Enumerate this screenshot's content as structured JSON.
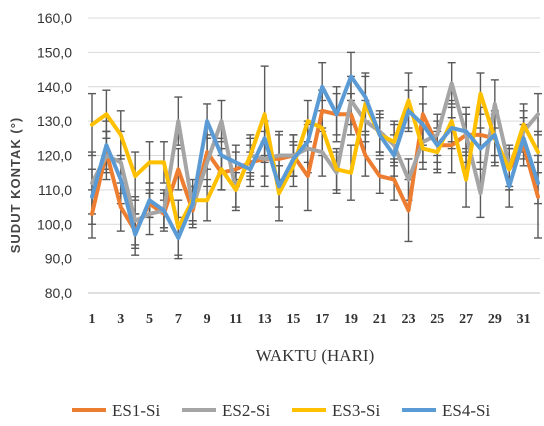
{
  "chart_data": {
    "type": "line",
    "xlabel": "WAKTU (HARI)",
    "ylabel": "SUDUT KONTAK (°)",
    "ylim": [
      80,
      160
    ],
    "ytick_step": 10,
    "ytick_labels": [
      "80,0",
      "90,0",
      "100,0",
      "110,0",
      "120,0",
      "130,0",
      "140,0",
      "150,0",
      "160,0"
    ],
    "x": [
      1,
      2,
      3,
      4,
      5,
      6,
      7,
      8,
      9,
      10,
      11,
      12,
      13,
      14,
      15,
      16,
      17,
      18,
      19,
      20,
      21,
      22,
      23,
      24,
      25,
      26,
      27,
      28,
      29,
      30,
      31,
      32
    ],
    "xtick_labels": [
      "1",
      "3",
      "5",
      "7",
      "9",
      "11",
      "13",
      "15",
      "17",
      "19",
      "21",
      "23",
      "25",
      "27",
      "29",
      "31"
    ],
    "grid": true,
    "legend_position": "bottom",
    "series": [
      {
        "name": "ES1-Si",
        "color": "#ED7D31",
        "values": [
          103,
          121,
          105,
          98,
          106,
          103,
          116,
          104,
          121,
          115,
          116,
          118,
          119,
          119,
          120,
          114,
          133,
          132,
          132,
          120,
          114,
          113,
          104,
          132,
          123,
          123,
          126,
          126,
          125,
          116,
          123,
          108
        ],
        "errors": [
          7,
          6,
          7,
          5,
          4,
          4,
          6,
          4,
          5,
          5,
          5,
          5,
          5,
          7,
          6,
          10,
          6,
          8,
          6,
          6,
          5,
          6,
          9,
          8,
          7,
          8,
          8,
          8,
          8,
          6,
          6,
          12
        ]
      },
      {
        "name": "ES2-Si",
        "color": "#A5A5A5",
        "values": [
          112,
          120,
          118,
          101,
          103,
          104,
          130,
          105,
          118,
          130,
          110,
          120,
          119,
          120,
          120,
          122,
          121,
          115,
          136,
          130,
          127,
          123,
          113,
          124,
          126,
          141,
          126,
          109,
          135,
          117,
          127,
          132
        ],
        "errors": [
          9,
          7,
          9,
          7,
          6,
          6,
          7,
          6,
          7,
          6,
          5,
          5,
          8,
          7,
          6,
          7,
          7,
          6,
          7,
          6,
          6,
          6,
          6,
          6,
          6,
          6,
          6,
          7,
          7,
          6,
          6,
          6
        ]
      },
      {
        "name": "ES3-Si",
        "color": "#FFC000",
        "values": [
          129,
          132,
          126,
          114,
          118,
          118,
          99,
          107,
          107,
          116,
          110,
          120,
          132,
          109,
          117,
          130,
          128,
          116,
          115,
          135,
          126,
          124,
          136,
          122,
          121,
          130,
          113,
          138,
          125,
          116,
          129,
          121
        ],
        "errors": [
          9,
          7,
          7,
          7,
          6,
          6,
          8,
          6,
          6,
          6,
          6,
          6,
          14,
          8,
          6,
          6,
          8,
          6,
          8,
          8,
          6,
          6,
          8,
          6,
          6,
          6,
          8,
          6,
          7,
          6,
          6,
          6
        ]
      },
      {
        "name": "ES4-Si",
        "color": "#5B9BD5",
        "values": [
          108,
          123,
          113,
          97,
          107,
          104,
          96,
          106,
          130,
          120,
          118,
          116,
          125,
          111,
          119,
          124,
          140,
          132,
          143,
          137,
          126,
          120,
          133,
          129,
          123,
          128,
          127,
          122,
          126,
          111,
          125,
          112
        ],
        "errors": [
          8,
          7,
          7,
          6,
          5,
          5,
          6,
          5,
          5,
          5,
          5,
          5,
          5,
          6,
          5,
          6,
          7,
          6,
          7,
          7,
          5,
          6,
          6,
          6,
          5,
          6,
          5,
          6,
          6,
          6,
          6,
          6
        ]
      }
    ]
  }
}
